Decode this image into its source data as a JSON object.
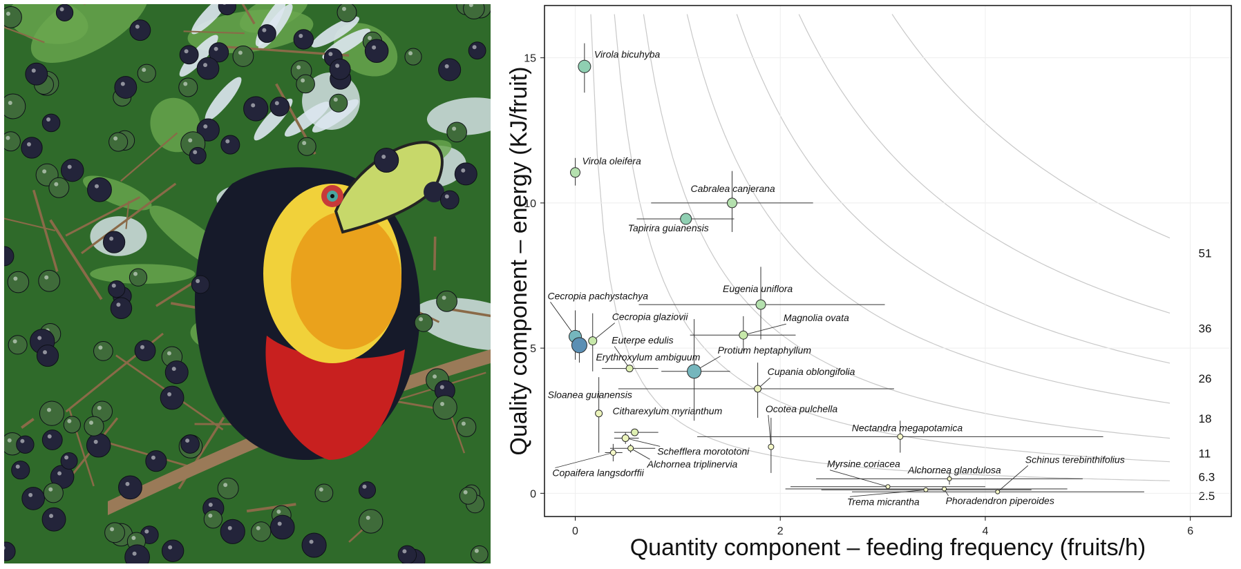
{
  "chart_data": {
    "type": "scatter",
    "title": "",
    "xlabel": "Quantity component – feeding frequency (fruits/h)",
    "ylabel": "Quality component – energy (KJ/fruit)",
    "xlim": [
      -0.3,
      6.4
    ],
    "ylim": [
      -0.8,
      16.8
    ],
    "xticks": [
      0,
      2,
      4,
      6
    ],
    "yticks": [
      0,
      5,
      10,
      15
    ],
    "grid": true,
    "colors": {
      "palette_low": "#f5f8c8",
      "palette_high": "#5b8fb4",
      "errorbar": "#333333",
      "isocline": "#c8c8c8",
      "gridline": "#eeeeee"
    },
    "isoclines": [
      {
        "label": "51",
        "k": 51
      },
      {
        "label": "36",
        "k": 36
      },
      {
        "label": "26",
        "k": 26
      },
      {
        "label": "18",
        "k": 18
      },
      {
        "label": "11",
        "k": 11
      },
      {
        "label": "6.3",
        "k": 6.3
      },
      {
        "label": "2.5",
        "k": 2.5
      }
    ],
    "points": [
      {
        "name": "Virola bicuhyba",
        "x": 0.09,
        "y": 14.7,
        "xerr": [
          0.09,
          0.09
        ],
        "yerr": [
          13.8,
          15.5
        ],
        "color": "#8fcfb2",
        "size": 9,
        "label_dx": 14,
        "label_dy": -13
      },
      {
        "name": "Virola oleifera",
        "x": 0.0,
        "y": 11.05,
        "xerr": [
          0.0,
          0.0
        ],
        "yerr": [
          10.6,
          11.55
        ],
        "color": "#b4e0ae",
        "size": 7,
        "label_dx": 10,
        "label_dy": -12
      },
      {
        "name": "Cabralea canjerana",
        "x": 1.53,
        "y": 10.0,
        "xerr": [
          0.74,
          2.32
        ],
        "yerr": [
          9.0,
          11.1
        ],
        "color": "#b4e0ae",
        "size": 7,
        "label_dx": -60,
        "label_dy": -16
      },
      {
        "name": "Tapirira guianensis",
        "x": 1.08,
        "y": 9.45,
        "xerr": [
          0.6,
          1.55
        ],
        "yerr": [
          9.45,
          9.45
        ],
        "color": "#8fcfb2",
        "size": 8,
        "label_dx": -84,
        "label_dy": 18
      },
      {
        "name": "Eugenia uniflora",
        "x": 1.81,
        "y": 6.5,
        "xerr": [
          0.62,
          3.02
        ],
        "yerr": [
          5.3,
          7.8
        ],
        "color": "#b4e0ae",
        "size": 7,
        "label_dx": -55,
        "label_dy": -18
      },
      {
        "name": "Magnolia ovata",
        "x": 1.64,
        "y": 5.45,
        "xerr": [
          1.12,
          2.15
        ],
        "yerr": [
          4.9,
          6.1
        ],
        "color": "#c7e8aa",
        "size": 6,
        "label_dx": 58,
        "label_dy": -20,
        "leader": true
      },
      {
        "name": "Cecropia pachystachya",
        "x": 0.0,
        "y": 5.4,
        "xerr": [
          0.0,
          0.0
        ],
        "yerr": [
          4.6,
          6.3
        ],
        "color": "#75b6bd",
        "size": 9,
        "label_dx": -40,
        "label_dy": -54,
        "leader": true
      },
      {
        "name": "Erythroxylum ambiguum",
        "x": 0.04,
        "y": 5.1,
        "xerr": [
          0.0,
          0.08
        ],
        "yerr": [
          4.5,
          5.6
        ],
        "color": "#5b8fb4",
        "size": 11,
        "label_dx": 24,
        "label_dy": 22
      },
      {
        "name": "Cecropia glaziovii",
        "x": 0.17,
        "y": 5.25,
        "xerr": [
          0.17,
          0.17
        ],
        "yerr": [
          4.2,
          6.2
        ],
        "color": "#c7e8aa",
        "size": 6,
        "label_dx": 28,
        "label_dy": -30,
        "leader": true
      },
      {
        "name": "Euterpe edulis",
        "x": 0.53,
        "y": 4.3,
        "xerr": [
          0.26,
          0.81
        ],
        "yerr": [
          4.3,
          4.3
        ],
        "color": "#dff0b2",
        "size": 5,
        "label_dx": -26,
        "label_dy": -36,
        "leader": true
      },
      {
        "name": "Protium heptaphyllum",
        "x": 1.16,
        "y": 4.2,
        "xerr": [
          0.84,
          1.51
        ],
        "yerr": [
          2.5,
          6.0
        ],
        "color": "#75b6bd",
        "size": 10,
        "label_dx": 34,
        "label_dy": -26,
        "leader": true
      },
      {
        "name": "Cupania oblongifolia",
        "x": 1.78,
        "y": 3.6,
        "xerr": [
          0.42,
          3.11
        ],
        "yerr": [
          2.6,
          4.5
        ],
        "color": "#ecf4bb",
        "size": 5,
        "label_dx": 14,
        "label_dy": -20,
        "leader": true
      },
      {
        "name": "Sloanea guianensis",
        "x": 0.23,
        "y": 2.75,
        "xerr": [
          0.23,
          0.23
        ],
        "yerr": [
          1.4,
          4.0
        ],
        "color": "#ecf4bb",
        "size": 5,
        "label_dx": -74,
        "label_dy": -22
      },
      {
        "name": "Citharexylum myrianthum",
        "x": 0.58,
        "y": 2.1,
        "xerr": [
          0.38,
          0.81
        ],
        "yerr": [
          2.1,
          2.1
        ],
        "color": "#dff0b2",
        "size": 5,
        "label_dx": -32,
        "label_dy": -26
      },
      {
        "name": "Schefflera morototoni",
        "x": 0.49,
        "y": 1.9,
        "xerr": [
          0.38,
          0.62
        ],
        "yerr": [
          1.7,
          2.1
        ],
        "color": "#ecf4bb",
        "size": 5,
        "label_dx": 46,
        "label_dy": 24,
        "leader": true
      },
      {
        "name": "Alchornea triplinervia",
        "x": 0.54,
        "y": 1.55,
        "xerr": [
          0.34,
          0.78
        ],
        "yerr": [
          1.4,
          1.7
        ],
        "color": "#ecf4bb",
        "size": 4,
        "label_dx": 24,
        "label_dy": 28,
        "leader": true
      },
      {
        "name": "Copaifera langsdorffii",
        "x": 0.37,
        "y": 1.4,
        "xerr": [
          0.29,
          0.46
        ],
        "yerr": [
          1.1,
          1.7
        ],
        "color": "#f5f8c8",
        "size": 4,
        "label_dx": -88,
        "label_dy": 34,
        "leader": true
      },
      {
        "name": "Ocotea pulchella",
        "x": 1.91,
        "y": 1.6,
        "xerr": [
          1.91,
          1.91
        ],
        "yerr": [
          0.7,
          2.6
        ],
        "color": "#f5f8c8",
        "size": 4,
        "label_dx": -8,
        "label_dy": -50,
        "leader": true
      },
      {
        "name": "Nectandra megapotamica",
        "x": 3.17,
        "y": 1.95,
        "xerr": [
          1.19,
          5.15
        ],
        "yerr": [
          1.4,
          2.5
        ],
        "color": "#f5f8c8",
        "size": 4,
        "label_dx": -70,
        "label_dy": -8
      },
      {
        "name": "Myrsine coriacea",
        "x": 3.05,
        "y": 0.23,
        "xerr": [
          2.1,
          4.0
        ],
        "yerr": [
          0.23,
          0.23
        ],
        "color": "#f5f8c8",
        "size": 3,
        "label_dx": -88,
        "label_dy": -28,
        "leader": true
      },
      {
        "name": "Alchornea glandulosa",
        "x": 3.65,
        "y": 0.5,
        "xerr": [
          2.35,
          4.95
        ],
        "yerr": [
          0.3,
          0.7
        ],
        "color": "#f5f8c8",
        "size": 3,
        "label_dx": -60,
        "label_dy": -8
      },
      {
        "name": "Schinus terebinthifolius",
        "x": 4.12,
        "y": 0.05,
        "xerr": [
          2.7,
          5.55
        ],
        "yerr": [
          0.05,
          0.05
        ],
        "color": "#f5f8c8",
        "size": 3,
        "label_dx": 40,
        "label_dy": -42,
        "leader": true
      },
      {
        "name": "Trema micrantha",
        "x": 3.42,
        "y": 0.12,
        "xerr": [
          2.4,
          4.45
        ],
        "yerr": [
          0.12,
          0.12
        ],
        "color": "#f5f8c8",
        "size": 3,
        "label_dx": -114,
        "label_dy": 22,
        "leader": true
      },
      {
        "name": "Phoradendron piperoides",
        "x": 3.6,
        "y": 0.15,
        "xerr": [
          2.05,
          4.8
        ],
        "yerr": [
          0.15,
          0.15
        ],
        "color": "#f5f8c8",
        "size": 3,
        "label_dx": 2,
        "label_dy": 22,
        "leader": true
      }
    ]
  },
  "photo": {
    "colors": {
      "sky": "#dde7ef",
      "leaf_dark": "#2f6a2a",
      "leaf_light": "#6aa84f",
      "frond": "#9dc08a",
      "twig": "#8a6a48",
      "fruit_dark": "#23243a",
      "fruit_green": "#3f6b3a",
      "body_black": "#161a2a",
      "throat_yellow": "#f1d13a",
      "throat_orange": "#eaa21c",
      "belly_red": "#c8201f",
      "bill_green": "#c7d86a",
      "bill_dark": "#232323",
      "eye_ring": "#c73a3a"
    }
  }
}
